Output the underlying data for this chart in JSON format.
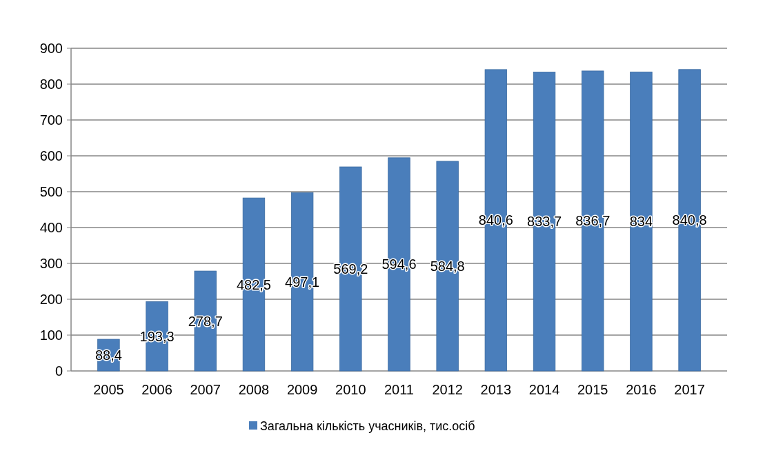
{
  "chart_data": {
    "type": "bar",
    "categories": [
      "2005",
      "2006",
      "2007",
      "2008",
      "2009",
      "2010",
      "2011",
      "2012",
      "2013",
      "2014",
      "2015",
      "2016",
      "2017"
    ],
    "series": [
      {
        "name": "Загальна кількість учасників, тис.осіб",
        "color": "#4a7ebb",
        "values": [
          88.4,
          193.3,
          278.7,
          482.5,
          497.1,
          569.2,
          594.6,
          584.8,
          840.6,
          833.7,
          836.7,
          834,
          840.8
        ],
        "value_labels": [
          "88,4",
          "193,3",
          "278,7",
          "482,5",
          "497,1",
          "569,2",
          "594,6",
          "584,8",
          "840,6",
          "833,7",
          "836,7",
          "834",
          "840,8"
        ]
      }
    ],
    "ylim": [
      0,
      900
    ],
    "yticks": [
      0,
      100,
      200,
      300,
      400,
      500,
      600,
      700,
      800,
      900
    ],
    "grid": "y",
    "legend": "bottom"
  }
}
